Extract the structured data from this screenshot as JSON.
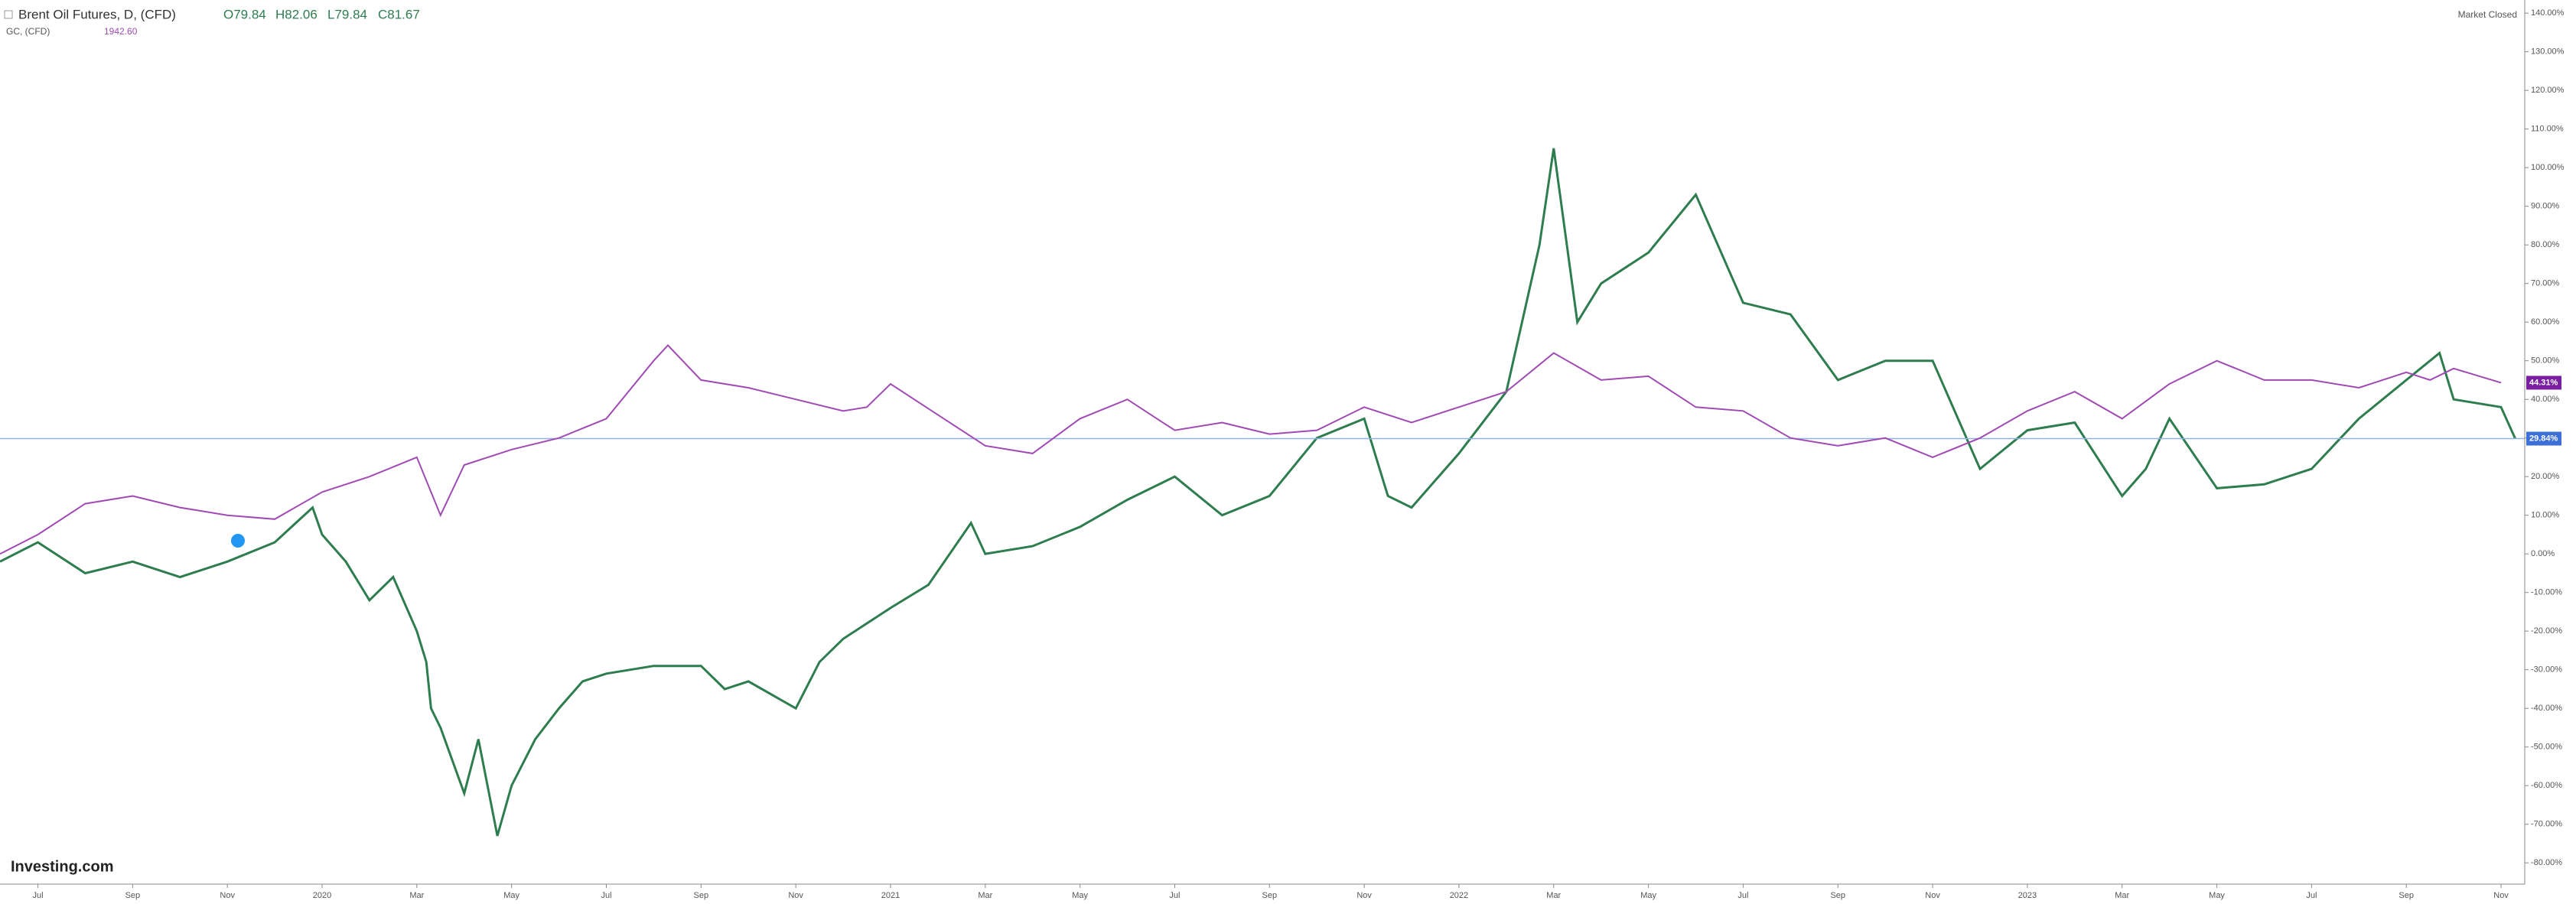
{
  "chart_data": {
    "type": "line",
    "series": [
      {
        "name": "Brent Oil Futures, D, (CFD)",
        "color": "#2e7d4f",
        "x": [
          -0.8,
          0,
          1,
          2,
          3,
          4,
          5,
          5.8,
          6,
          6.5,
          7,
          7.5,
          8,
          8.2,
          8.3,
          8.5,
          9,
          9.3,
          9.7,
          10,
          10.5,
          11,
          11.5,
          12,
          13,
          14,
          14.5,
          15,
          16,
          16.5,
          17,
          18,
          18.8,
          19.7,
          20,
          21,
          22,
          23,
          24,
          25,
          26,
          27,
          28,
          28.5,
          29,
          30,
          31,
          31.7,
          32,
          32.5,
          33,
          34,
          35,
          36,
          37,
          38,
          39,
          40,
          41,
          42,
          43,
          44,
          44.5,
          45,
          46,
          47,
          48,
          49,
          50,
          50.7,
          51,
          52,
          52.3
        ],
        "values": [
          -2,
          3,
          -5,
          -2,
          -6,
          -2,
          3,
          12,
          5,
          -2,
          -12,
          -6,
          -20,
          -28,
          -40,
          -45,
          -62,
          -48,
          -73,
          -60,
          -48,
          -40,
          -33,
          -31,
          -29,
          -29,
          -35,
          -33,
          -40,
          -28,
          -22,
          -14,
          -8,
          8,
          0,
          2,
          7,
          14,
          20,
          10,
          15,
          30,
          35,
          15,
          12,
          26,
          42,
          80,
          105,
          60,
          70,
          78,
          93,
          65,
          62,
          45,
          50,
          50,
          22,
          32,
          34,
          15,
          22,
          35,
          17,
          18,
          22,
          35,
          45,
          52,
          40,
          38,
          29.84
        ],
        "last_label": "29.84%"
      },
      {
        "name": "GC, (CFD)",
        "color": "#a04ab4",
        "x": [
          -0.8,
          0,
          1,
          2,
          3,
          4,
          5,
          6,
          7,
          8,
          8.5,
          9,
          10,
          11,
          12,
          13,
          13.3,
          14,
          15,
          16,
          17,
          17.5,
          18,
          19,
          20,
          21,
          22,
          23,
          24,
          25,
          26,
          27,
          28,
          29,
          30,
          31,
          32,
          33,
          34,
          35,
          36,
          37,
          38,
          39,
          40,
          41,
          42,
          43,
          44,
          45,
          46,
          47,
          48,
          49,
          50,
          50.5,
          51,
          52
        ],
        "values": [
          0,
          5,
          13,
          15,
          12,
          10,
          9,
          16,
          20,
          25,
          10,
          23,
          27,
          30,
          35,
          50,
          54,
          45,
          43,
          40,
          37,
          38,
          44,
          36,
          28,
          26,
          35,
          40,
          32,
          34,
          31,
          32,
          38,
          34,
          38,
          42,
          52,
          45,
          46,
          38,
          37,
          30,
          28,
          30,
          25,
          30,
          37,
          42,
          35,
          44,
          50,
          45,
          45,
          43,
          47,
          45,
          48,
          44.31
        ],
        "last_label": "44.31%"
      }
    ],
    "xlim": [
      -0.8,
      52.5
    ],
    "xticks": [
      {
        "value": 0,
        "label": "Jul"
      },
      {
        "value": 2,
        "label": "Sep"
      },
      {
        "value": 4,
        "label": "Nov"
      },
      {
        "value": 6,
        "label": "2020"
      },
      {
        "value": 8,
        "label": "Mar"
      },
      {
        "value": 10,
        "label": "May"
      },
      {
        "value": 12,
        "label": "Jul"
      },
      {
        "value": 14,
        "label": "Sep"
      },
      {
        "value": 16,
        "label": "Nov"
      },
      {
        "value": 18,
        "label": "2021"
      },
      {
        "value": 20,
        "label": "Mar"
      },
      {
        "value": 22,
        "label": "May"
      },
      {
        "value": 24,
        "label": "Jul"
      },
      {
        "value": 26,
        "label": "Sep"
      },
      {
        "value": 28,
        "label": "Nov"
      },
      {
        "value": 30,
        "label": "2022"
      },
      {
        "value": 32,
        "label": "Mar"
      },
      {
        "value": 34,
        "label": "May"
      },
      {
        "value": 36,
        "label": "Jul"
      },
      {
        "value": 38,
        "label": "Sep"
      },
      {
        "value": 40,
        "label": "Nov"
      },
      {
        "value": 42,
        "label": "2023"
      },
      {
        "value": 44,
        "label": "Mar"
      },
      {
        "value": 46,
        "label": "May"
      },
      {
        "value": 48,
        "label": "Jul"
      },
      {
        "value": 50,
        "label": "Sep"
      },
      {
        "value": 52,
        "label": "Nov"
      }
    ],
    "ylim": [
      -85.5,
      143.4
    ],
    "yticks": [
      {
        "value": 140,
        "label": "140.00%"
      },
      {
        "value": 130,
        "label": "130.00%"
      },
      {
        "value": 120,
        "label": "120.00%"
      },
      {
        "value": 110,
        "label": "110.00%"
      },
      {
        "value": 100,
        "label": "100.00%"
      },
      {
        "value": 90,
        "label": "90.00%"
      },
      {
        "value": 80,
        "label": "80.00%"
      },
      {
        "value": 70,
        "label": "70.00%"
      },
      {
        "value": 60,
        "label": "60.00%"
      },
      {
        "value": 50,
        "label": "50.00%"
      },
      {
        "value": 40,
        "label": "40.00%"
      },
      {
        "value": 30,
        "label": "30.00%"
      },
      {
        "value": 20,
        "label": "20.00%"
      },
      {
        "value": 10,
        "label": "10.00%"
      },
      {
        "value": 0,
        "label": "0.00%"
      },
      {
        "value": -10,
        "label": "-10.00%"
      },
      {
        "value": -20,
        "label": "-20.00%"
      },
      {
        "value": -30,
        "label": "-30.00%"
      },
      {
        "value": -40,
        "label": "-40.00%"
      },
      {
        "value": -50,
        "label": "-50.00%"
      },
      {
        "value": -60,
        "label": "-60.00%"
      },
      {
        "value": -70,
        "label": "-70.00%"
      },
      {
        "value": -80,
        "label": "-80.00%"
      }
    ],
    "grid": false
  },
  "header": {
    "open": "O79.84",
    "high": "H82.06",
    "low": "L79.84",
    "close": "C81.67",
    "gold_price": "1942.60",
    "status": "Market Closed",
    "logo": "Investing.com"
  }
}
